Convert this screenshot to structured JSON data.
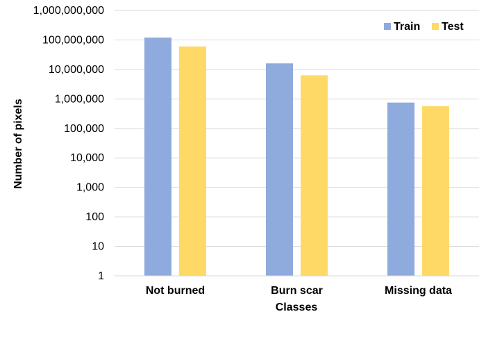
{
  "chart_data": {
    "type": "bar",
    "categories": [
      "Not burned",
      "Burn scar",
      "Missing data"
    ],
    "series": [
      {
        "name": "Train",
        "color": "#8faadc",
        "values": [
          120000000,
          16000000,
          750000
        ]
      },
      {
        "name": "Test",
        "color": "#ffd966",
        "values": [
          60000000,
          6300000,
          570000
        ]
      }
    ],
    "xlabel": "Classes",
    "ylabel": "Number of pixels",
    "yscale": "log",
    "ylim": [
      1,
      1000000000
    ],
    "yticks": [
      1,
      10,
      100,
      1000,
      10000,
      100000,
      1000000,
      10000000,
      100000000,
      1000000000
    ],
    "ytick_labels": [
      "1",
      "10",
      "100",
      "1,000",
      "10,000",
      "100,000",
      "1,000,000",
      "10,000,000",
      "100,000,000",
      "1,000,000,000"
    ],
    "grid": true,
    "legend_position": "top-right"
  }
}
